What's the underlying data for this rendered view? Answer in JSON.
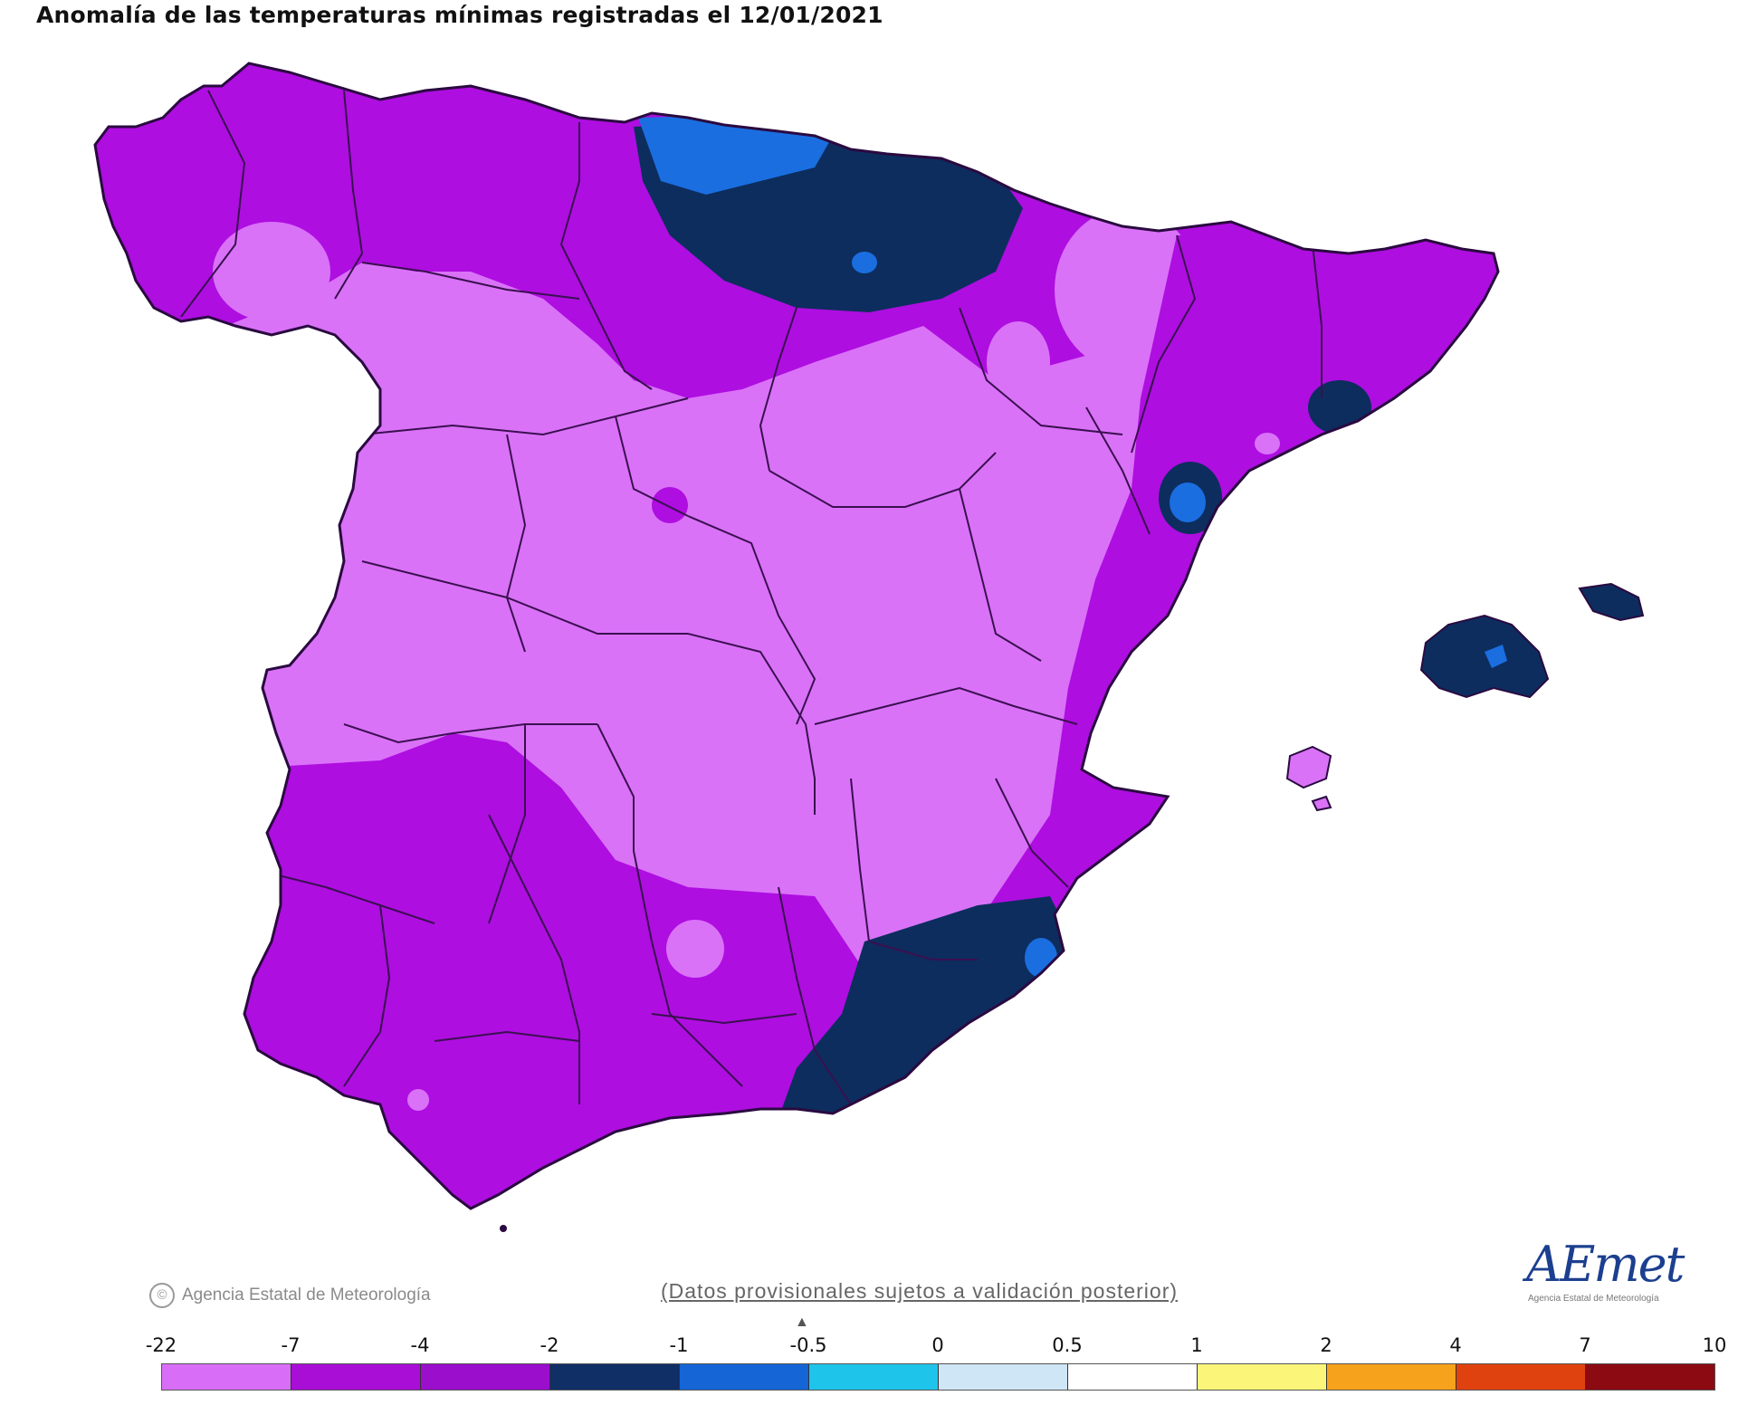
{
  "title": "Anomalía de las temperaturas mínimas registradas el 12/01/2021",
  "footer": {
    "credit": "Agencia Estatal de Meteorología",
    "disclaimer": "(Datos provisionales sujetos a validación posterior)",
    "logo": "AEmet",
    "logo_sub": "Agencia Estatal de Meteorología"
  },
  "legend": {
    "ticks": [
      "-22",
      "-7",
      "-4",
      "-2",
      "-1",
      "-0.5",
      "0",
      "0.5",
      "1",
      "2",
      "4",
      "7",
      "10"
    ],
    "colors": [
      "#d86ef8",
      "#a80ed6",
      "#9a0ecc",
      "#0f2f66",
      "#1565d6",
      "#1fc4ea",
      "#cfe6f6",
      "#ffffff",
      "#fbf57a",
      "#f7a21d",
      "#e0420f",
      "#8c0a12",
      "#5a3311"
    ]
  },
  "map_colors": {
    "lightest": "#da72f8",
    "purple": "#ae0ee0",
    "navy": "#0d2d5e",
    "blue": "#1a6ee0",
    "border": "#3a1050"
  }
}
